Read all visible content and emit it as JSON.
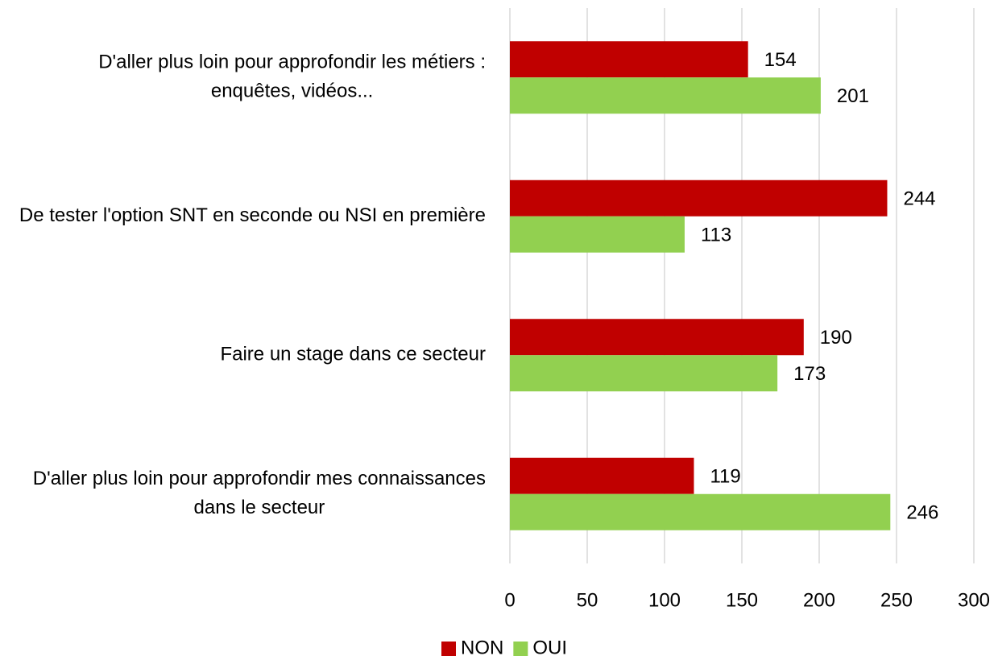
{
  "chart_data": {
    "type": "bar",
    "orientation": "horizontal",
    "categories": [
      "D'aller plus loin pour approfondir les métiers : enquêtes, vidéos...",
      "De tester l'option SNT en seconde ou NSI en première",
      "Faire un stage dans ce secteur",
      "D'aller plus loin pour approfondir mes connaissances dans le secteur"
    ],
    "series": [
      {
        "name": "NON",
        "color": "#c00000",
        "values": [
          154,
          244,
          190,
          119
        ]
      },
      {
        "name": "OUI",
        "color": "#92d050",
        "values": [
          201,
          113,
          173,
          246
        ]
      }
    ],
    "xlim": [
      0,
      300
    ],
    "xticks": [
      0,
      50,
      100,
      150,
      200,
      250,
      300
    ],
    "grid": true,
    "legend": "bottom"
  }
}
